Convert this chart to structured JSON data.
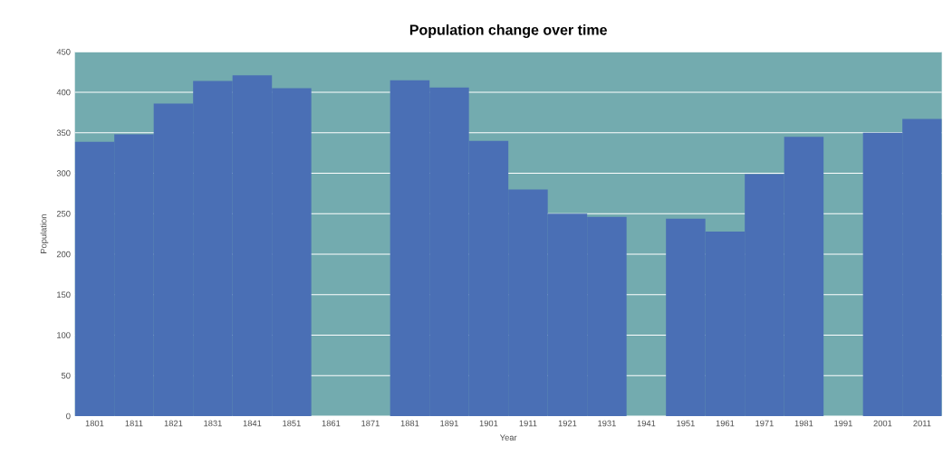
{
  "chart_data": {
    "type": "bar",
    "title": "Population change over time",
    "xlabel": "Year",
    "ylabel": "Population",
    "categories": [
      "1801",
      "1811",
      "1821",
      "1831",
      "1841",
      "1851",
      "1861",
      "1871",
      "1881",
      "1891",
      "1901",
      "1911",
      "1921",
      "1931",
      "1941",
      "1951",
      "1961",
      "1971",
      "1981",
      "1991",
      "2001",
      "2011"
    ],
    "series": [
      {
        "color": "#4a6fb5",
        "values": [
          339,
          348,
          386,
          414,
          421,
          405,
          null,
          null,
          415,
          406,
          340,
          280,
          250,
          246,
          null,
          244,
          228,
          299,
          345,
          null,
          350,
          367
        ]
      }
    ],
    "ylim": [
      0,
      450
    ],
    "yticks": [
      0,
      50,
      100,
      150,
      200,
      250,
      300,
      350,
      400,
      450
    ],
    "grid": "y",
    "bands": [
      {
        "axis": "y",
        "from": 0,
        "to": 450,
        "color": "#73abaf"
      }
    ]
  }
}
